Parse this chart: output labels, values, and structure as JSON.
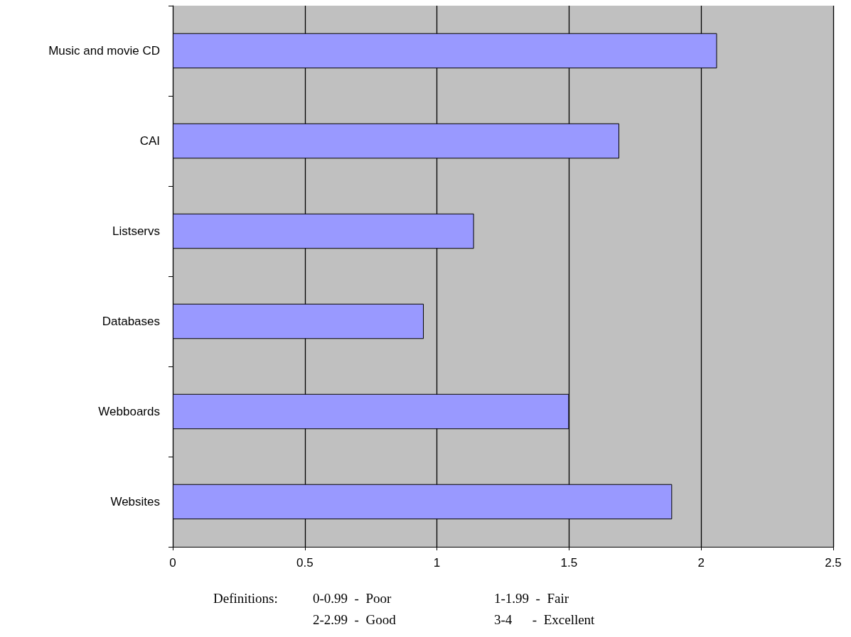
{
  "chart_data": {
    "type": "bar",
    "orientation": "horizontal",
    "categories": [
      "Music and movie CD",
      "CAI",
      "Listservs",
      "Databases",
      "Webboards",
      "Websites"
    ],
    "values": [
      2.06,
      1.69,
      1.14,
      0.95,
      1.5,
      1.89
    ],
    "color": "#9999ff",
    "xlim": [
      0,
      2.5
    ],
    "xticks": [
      0,
      0.5,
      1,
      1.5,
      2,
      2.5
    ],
    "grid": "x",
    "annotations": [
      "Definitions:",
      "0-0.99  -  Poor",
      "1-1.99  -  Fair",
      "2-2.99  -  Good",
      "3-4      -  Excellent"
    ]
  }
}
